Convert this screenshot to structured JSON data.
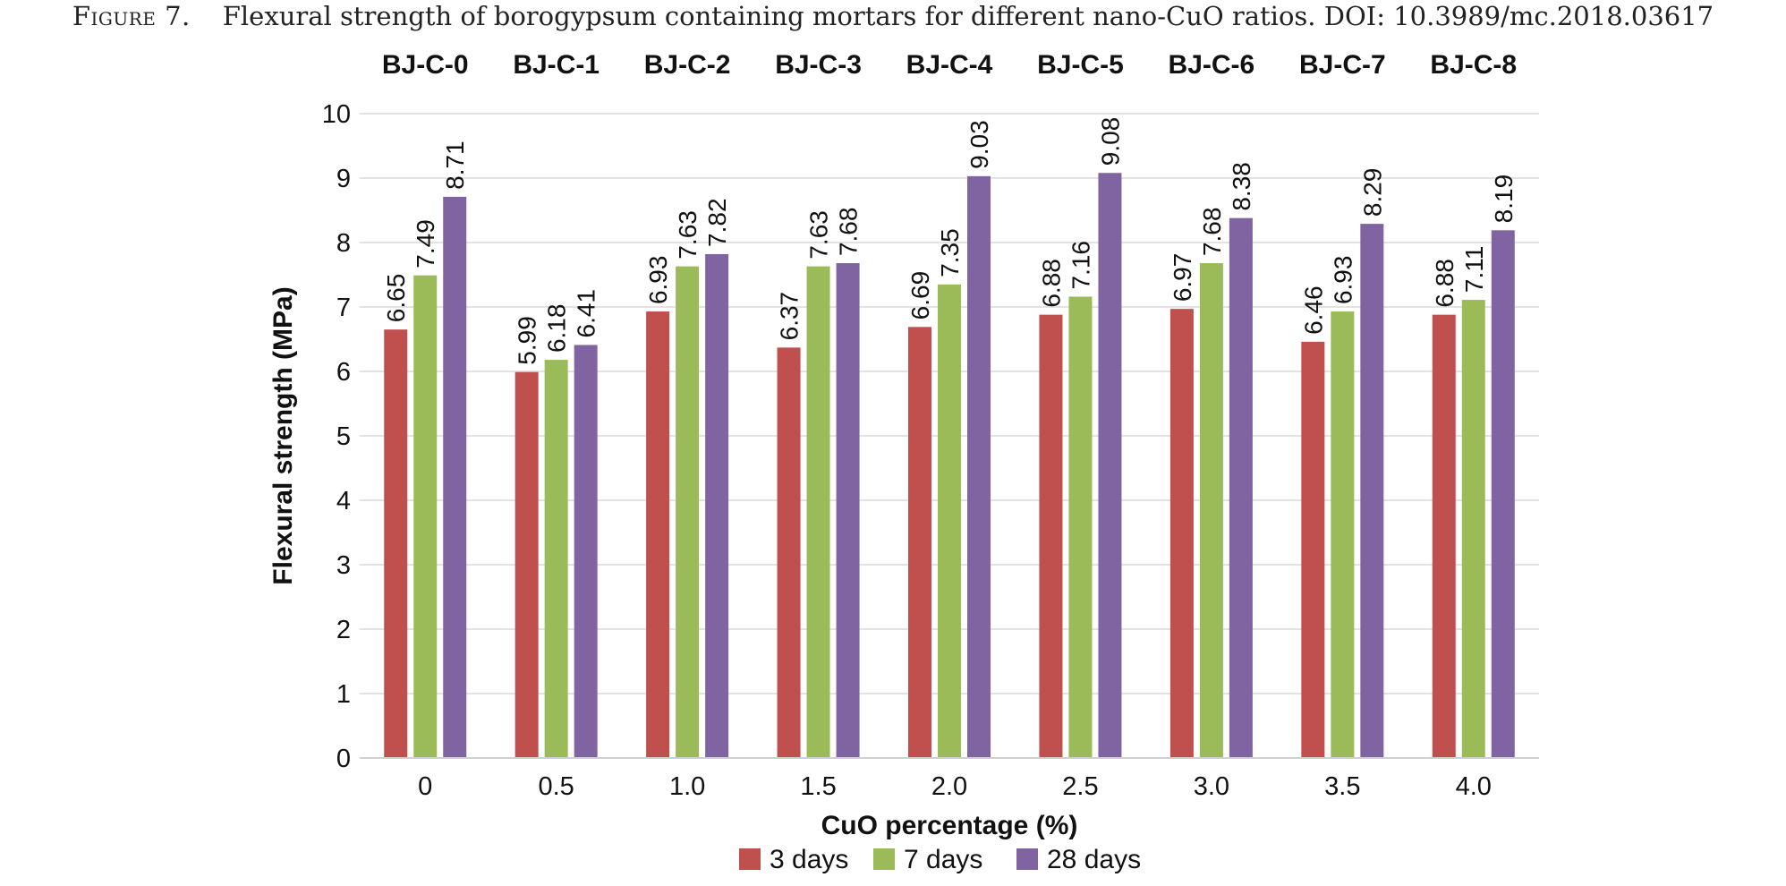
{
  "caption": {
    "label": "Figure 7.",
    "text": "Flexural strength of borogypsum containing mortars for different nano-CuO ratios. DOI: 10.3989/mc.2018.03617"
  },
  "chart_data": {
    "type": "bar",
    "xlabel": "CuO percentage (%)",
    "ylabel": "Flexural strength (MPa)",
    "ylim": [
      0,
      10
    ],
    "yticks": [
      0,
      1,
      2,
      3,
      4,
      5,
      6,
      7,
      8,
      9,
      10
    ],
    "grid": true,
    "legend_position": "bottom",
    "categories": [
      "0",
      "0.5",
      "1.0",
      "1.5",
      "2.0",
      "2.5",
      "3.0",
      "3.5",
      "4.0"
    ],
    "group_labels": [
      "BJ-C-0",
      "BJ-C-1",
      "BJ-C-2",
      "BJ-C-3",
      "BJ-C-4",
      "BJ-C-5",
      "BJ-C-6",
      "BJ-C-7",
      "BJ-C-8"
    ],
    "series": [
      {
        "name": "3 days",
        "color": "#c0504d",
        "values": [
          6.65,
          5.99,
          6.93,
          6.37,
          6.69,
          6.88,
          6.97,
          6.46,
          6.88
        ]
      },
      {
        "name": "7 days",
        "color": "#9bbb59",
        "values": [
          7.49,
          6.18,
          7.63,
          7.63,
          7.35,
          7.16,
          7.68,
          6.93,
          7.11
        ]
      },
      {
        "name": "28 days",
        "color": "#8064a2",
        "values": [
          8.71,
          6.41,
          7.82,
          7.68,
          9.03,
          9.08,
          8.38,
          8.29,
          8.19
        ]
      }
    ]
  }
}
